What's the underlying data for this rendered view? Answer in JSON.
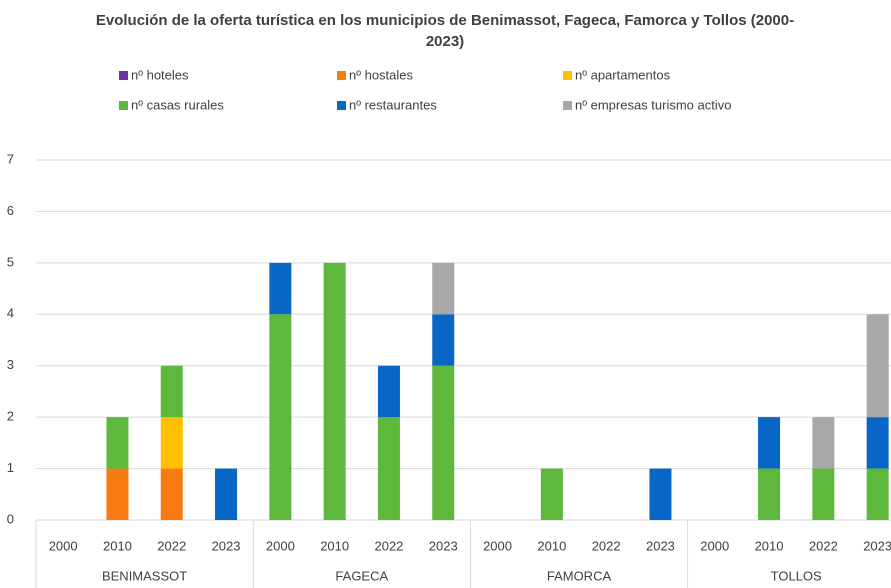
{
  "chart_data": {
    "type": "stacked_bar",
    "title": "Evolución de la oferta turística en los municipios de Benimassot, Fageca, Famorca y Tollos (2000-2023)",
    "categories": [
      "2000",
      "2010",
      "2022",
      "2023",
      "2000",
      "2010",
      "2022",
      "2023",
      "2000",
      "2010",
      "2022",
      "2023",
      "2000",
      "2010",
      "2022",
      "2023"
    ],
    "groups": [
      "BENIMASSOT",
      "FAGECA",
      "FAMORCA",
      "TOLLOS"
    ],
    "series": [
      {
        "name": "nº hoteles",
        "color": "#7030a0",
        "values": [
          0,
          0,
          0,
          0,
          0,
          0,
          0,
          0,
          0,
          0,
          0,
          0,
          0,
          0,
          0,
          0
        ]
      },
      {
        "name": "nº hostales",
        "color": "#f77b12",
        "values": [
          0,
          1,
          1,
          0,
          0,
          0,
          0,
          0,
          0,
          0,
          0,
          0,
          0,
          0,
          0,
          0
        ]
      },
      {
        "name": "nº apartamentos",
        "color": "#ffc000",
        "values": [
          0,
          0,
          1,
          0,
          0,
          0,
          0,
          0,
          0,
          0,
          0,
          0,
          0,
          0,
          0,
          0
        ]
      },
      {
        "name": "nº casas rurales",
        "color": "#5db83b",
        "values": [
          0,
          1,
          1,
          0,
          4,
          5,
          2,
          3,
          0,
          1,
          0,
          0,
          0,
          1,
          1,
          1
        ]
      },
      {
        "name": "nº restaurantes",
        "color": "#0866c6",
        "values": [
          0,
          0,
          0,
          1,
          1,
          0,
          1,
          1,
          0,
          0,
          0,
          1,
          0,
          1,
          0,
          1
        ]
      },
      {
        "name": "nº empresas turismo activo",
        "color": "#a8a8a8",
        "values": [
          0,
          0,
          0,
          0,
          0,
          0,
          0,
          1,
          0,
          0,
          0,
          0,
          0,
          0,
          1,
          2
        ]
      }
    ],
    "ylim": [
      0,
      7
    ],
    "yticks": [
      0,
      1,
      2,
      3,
      4,
      5,
      6,
      7
    ],
    "grid": true
  }
}
